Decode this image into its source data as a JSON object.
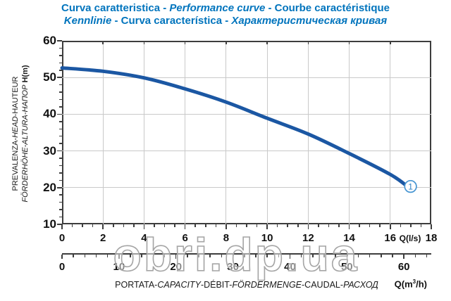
{
  "title": {
    "line1_parts": [
      {
        "t": "Curva caratteristica - ",
        "i": false
      },
      {
        "t": "Performance curve",
        "i": true
      },
      {
        "t": " - Courbe caractéristique",
        "i": false
      }
    ],
    "line2_parts": [
      {
        "t": "Kennlinie",
        "i": true
      },
      {
        "t": " - Curva característica - ",
        "i": false
      },
      {
        "t": "Характеристическая кривая",
        "i": true
      }
    ]
  },
  "y_axis": {
    "label_line1_parts": [
      {
        "t": "PREVALENZA-",
        "i": false
      },
      {
        "t": "HEAD",
        "i": true
      },
      {
        "t": "-HAUTEUR",
        "i": false
      }
    ],
    "label_line2_parts": [
      {
        "t": "FÖRDERHÖHE-ALTURA-НАПОР",
        "i": true
      },
      {
        "t": " H(m)",
        "i": false,
        "b": true
      }
    ],
    "tick_labels": [
      60,
      50,
      40,
      30,
      20,
      10
    ]
  },
  "x_axis_ls": {
    "tick_labels": [
      0,
      2,
      4,
      6,
      8,
      10,
      12,
      14,
      16,
      18
    ],
    "unit_label": "Q(l/s)"
  },
  "x_axis_m3h": {
    "tick_labels": [
      0,
      10,
      20,
      30,
      40,
      50,
      60
    ],
    "unit_pre": "Q(m",
    "unit_sup": "3",
    "unit_post": "/h)"
  },
  "footer_parts": [
    {
      "t": "PORTATA-",
      "i": false
    },
    {
      "t": "CAPACITY",
      "i": true
    },
    {
      "t": "-DÉBIT-",
      "i": false
    },
    {
      "t": "FÖRDERMENGE",
      "i": true
    },
    {
      "t": "-CAUDAL-",
      "i": false
    },
    {
      "t": "РАСХОД",
      "i": true
    }
  ],
  "watermark_text": "obri.dp.ua",
  "curve_marker_label": "1",
  "colors": {
    "title_blue": "#0074bd",
    "curve_blue": "#1b57a3",
    "marker_stroke_blue": "#4695d2",
    "marker_text_blue": "#2e7fc2",
    "axis_dark": "#3d3d3d",
    "gridline_gray": "#c9c9c9",
    "watermark_gray": "#a5a5a5"
  },
  "chart_data": {
    "type": "line",
    "title": "Curva caratteristica - Performance curve - Courbe caractéristique / Kennlinie - Curva característica - Характеристическая кривая",
    "xlabel": "PORTATA-CAPACITY-DÉBIT-FÖRDERMENGE-CAUDAL-РАСХОД",
    "x_unit_primary": "Q(l/s)",
    "x_unit_secondary": "Q(m³/h)",
    "ylabel": "PREVALENZA-HEAD-HAUTEUR FÖRDERHÖHE-ALTURA-НАПОР H(m)",
    "xlim_ls": [
      0,
      18
    ],
    "x_ticks_ls": [
      0,
      2,
      4,
      6,
      8,
      10,
      12,
      14,
      16,
      18
    ],
    "x_ticks_m3h": [
      0,
      10,
      20,
      30,
      40,
      50,
      60
    ],
    "ylim": [
      10,
      60
    ],
    "y_ticks": [
      10,
      20,
      30,
      40,
      50,
      60
    ],
    "grid": true,
    "legend": "none",
    "series": [
      {
        "name": "1",
        "x_ls": [
          0,
          2,
          4,
          6,
          8,
          10,
          12,
          14,
          16,
          16.75
        ],
        "y_head_m": [
          52.6,
          51.7,
          49.9,
          46.9,
          43.3,
          38.9,
          34.6,
          29.3,
          23.6,
          20.7
        ]
      }
    ]
  }
}
